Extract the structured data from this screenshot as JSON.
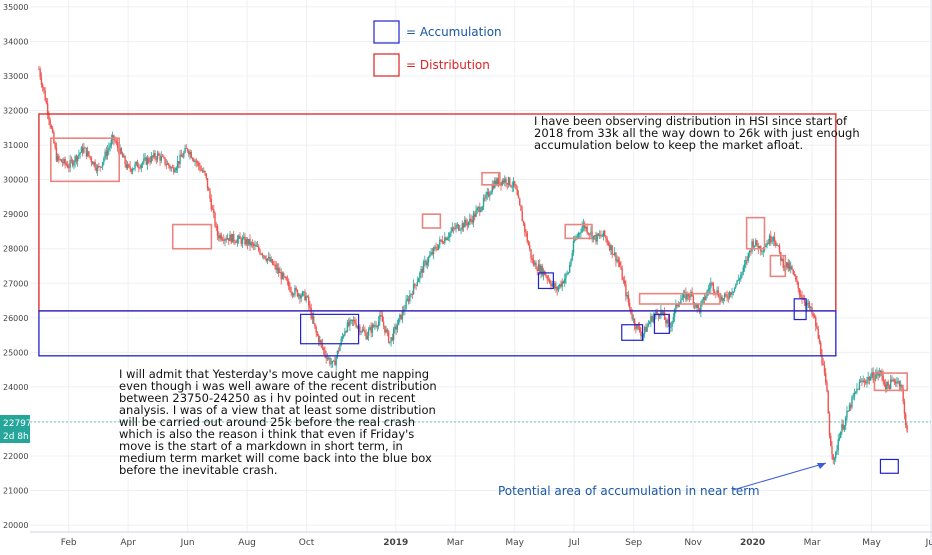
{
  "chart_data": {
    "type": "candlestick",
    "instrument": "HSI",
    "y_ticks": [
      35000,
      34000,
      33000,
      32000,
      31000,
      30000,
      29000,
      28000,
      27000,
      26000,
      25000,
      24000,
      23000,
      22000,
      21000,
      20000
    ],
    "ylim": [
      19800,
      35200
    ],
    "x_ticks": [
      "Feb",
      "Apr",
      "Jun",
      "Aug",
      "Oct",
      "2019",
      "Mar",
      "May",
      "Jul",
      "Sep",
      "Nov",
      "2020",
      "Mar",
      "May",
      "Jul"
    ],
    "x_tick_bold": [
      false,
      false,
      false,
      false,
      false,
      true,
      false,
      false,
      false,
      false,
      false,
      true,
      false,
      false,
      false
    ],
    "xlim_months": [
      -0.3,
      30
    ],
    "x_tick_months": [
      1,
      3,
      5,
      7,
      9,
      12,
      14,
      16,
      18,
      20,
      22,
      24,
      26,
      28,
      30
    ],
    "price_label": {
      "value": "22797",
      "countdown": "2d 8h"
    },
    "legend": [
      {
        "label": "= Accumulation",
        "color": "#2222cc"
      },
      {
        "label": "= Distribution",
        "color": "#dd2222"
      }
    ],
    "colors": {
      "up": "#26a69a",
      "down": "#ef5350",
      "accumulation": "#2222cc",
      "distribution": "#dd2222",
      "distribution_small": "#e8857f"
    },
    "price_path": [
      [
        0,
        33200
      ],
      [
        0.3,
        32000
      ],
      [
        0.6,
        30600
      ],
      [
        1.0,
        30400
      ],
      [
        1.5,
        30900
      ],
      [
        2.0,
        30300
      ],
      [
        2.5,
        31200
      ],
      [
        3.0,
        30300
      ],
      [
        4.0,
        30700
      ],
      [
        4.5,
        30300
      ],
      [
        5.0,
        30900
      ],
      [
        5.6,
        30100
      ],
      [
        6.0,
        28400
      ],
      [
        6.5,
        28300
      ],
      [
        7.0,
        28200
      ],
      [
        7.5,
        27900
      ],
      [
        8.0,
        27400
      ],
      [
        8.5,
        26800
      ],
      [
        9.0,
        26600
      ],
      [
        9.3,
        25600
      ],
      [
        9.6,
        25000
      ],
      [
        9.9,
        24600
      ],
      [
        10.3,
        25700
      ],
      [
        10.6,
        25900
      ],
      [
        11.0,
        25500
      ],
      [
        11.5,
        26000
      ],
      [
        11.8,
        25300
      ],
      [
        12.0,
        25700
      ],
      [
        12.5,
        26700
      ],
      [
        13.0,
        27600
      ],
      [
        13.5,
        28200
      ],
      [
        14.0,
        28600
      ],
      [
        14.5,
        28800
      ],
      [
        15.0,
        29400
      ],
      [
        15.3,
        29900
      ],
      [
        15.7,
        30000
      ],
      [
        16.0,
        29800
      ],
      [
        16.3,
        28700
      ],
      [
        16.6,
        27600
      ],
      [
        17.0,
        27300
      ],
      [
        17.4,
        26800
      ],
      [
        17.8,
        27300
      ],
      [
        18.0,
        28200
      ],
      [
        18.3,
        28700
      ],
      [
        18.7,
        28300
      ],
      [
        19.0,
        28400
      ],
      [
        19.5,
        27600
      ],
      [
        19.8,
        26500
      ],
      [
        20.0,
        25900
      ],
      [
        20.3,
        25500
      ],
      [
        20.6,
        26000
      ],
      [
        20.9,
        26200
      ],
      [
        21.2,
        25700
      ],
      [
        21.5,
        26500
      ],
      [
        21.9,
        26700
      ],
      [
        22.2,
        26200
      ],
      [
        22.6,
        27000
      ],
      [
        23.0,
        26500
      ],
      [
        23.4,
        26900
      ],
      [
        23.7,
        27400
      ],
      [
        24.0,
        28200
      ],
      [
        24.3,
        28000
      ],
      [
        24.7,
        28400
      ],
      [
        25.0,
        27600
      ],
      [
        25.3,
        27400
      ],
      [
        25.6,
        26700
      ],
      [
        25.9,
        26300
      ],
      [
        26.1,
        25900
      ],
      [
        26.3,
        25000
      ],
      [
        26.5,
        23800
      ],
      [
        26.6,
        22500
      ],
      [
        26.75,
        21800
      ],
      [
        26.9,
        22600
      ],
      [
        27.1,
        23000
      ],
      [
        27.3,
        23500
      ],
      [
        27.6,
        24100
      ],
      [
        28.0,
        24300
      ],
      [
        28.3,
        24400
      ],
      [
        28.5,
        24000
      ],
      [
        28.8,
        24200
      ],
      [
        29.0,
        24100
      ],
      [
        29.1,
        23200
      ],
      [
        29.2,
        22797
      ]
    ],
    "boxes_distribution_large": [
      [
        0.0,
        31900,
        26200,
        26.8
      ]
    ],
    "boxes_accumulation_large": [
      [
        0.0,
        26200,
        24900,
        26.8
      ]
    ],
    "boxes_distribution_small": [
      [
        0.4,
        31200,
        29950,
        2.7
      ],
      [
        4.5,
        28700,
        28000,
        5.8
      ],
      [
        12.9,
        29000,
        28600,
        13.5
      ],
      [
        14.9,
        30200,
        29850,
        15.5
      ],
      [
        17.7,
        28700,
        28300,
        18.6
      ],
      [
        20.2,
        26700,
        26400,
        22.9
      ],
      [
        23.8,
        28900,
        28000,
        24.4
      ],
      [
        24.6,
        27800,
        27200,
        25.1
      ],
      [
        28.1,
        24400,
        23900,
        29.2
      ]
    ],
    "boxes_accumulation_small": [
      [
        8.8,
        26100,
        25250,
        10.75
      ],
      [
        16.8,
        27300,
        26850,
        17.3
      ],
      [
        19.6,
        25800,
        25350,
        20.3
      ],
      [
        20.7,
        26100,
        25550,
        21.2
      ],
      [
        25.4,
        26550,
        25950,
        25.8
      ],
      [
        28.3,
        21900,
        21500,
        28.9
      ]
    ],
    "annotations": {
      "distribution_note": [
        "I have been observing distribution in HSI since start of",
        "2018 from 33k all the way down to 26k with just enough",
        "accumulation below to keep the market afloat."
      ],
      "admission_note": [
        "I will admit that Yesterday's move caught me napping",
        "even though i was well aware of the recent distribution",
        "between 23750-24250 as i hv pointed out in recent",
        "analysis. I was of a view that at least some distribution",
        "will be carried out around 25k before the real crash",
        "which is also the reason i think that even if Friday's",
        "move is the start of a markdown in short term, in",
        "medium term market will come back into the blue box",
        "before the inevitable crash."
      ],
      "potential_note": "Potential area of accumulation in near term"
    }
  }
}
